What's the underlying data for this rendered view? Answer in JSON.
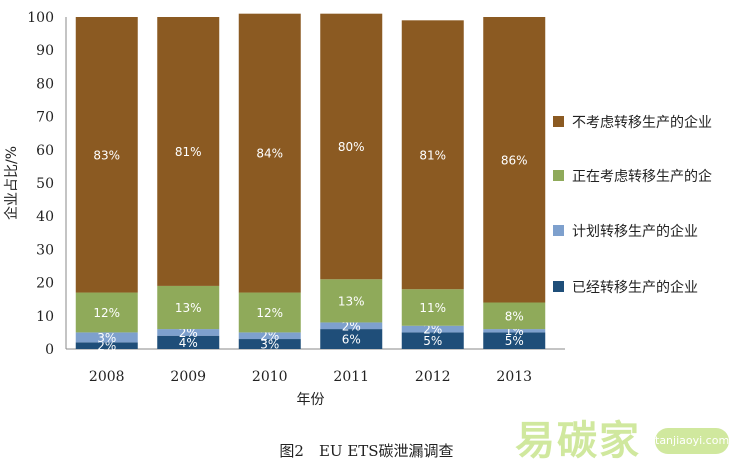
{
  "chart_data": {
    "type": "bar",
    "stacked": true,
    "percent_stacked": true,
    "categories": [
      "2008",
      "2009",
      "2010",
      "2011",
      "2012",
      "2013"
    ],
    "series": [
      {
        "name": "已经转移生产的企业",
        "values": [
          2,
          4,
          3,
          6,
          5,
          5
        ],
        "labels": [
          "2%",
          "4%",
          "3%",
          "6%",
          "5%",
          "5%"
        ],
        "color": "#1f4e79"
      },
      {
        "name": "计划转移生产的企业",
        "values": [
          3,
          2,
          2,
          2,
          2,
          1
        ],
        "labels": [
          "3%",
          "2%",
          "2%",
          "2%",
          "2%",
          "1%"
        ],
        "color": "#7ea0cd"
      },
      {
        "name": "正在考虑转移生产的企",
        "values": [
          12,
          13,
          12,
          13,
          11,
          8
        ],
        "labels": [
          "12%",
          "13%",
          "12%",
          "13%",
          "11%",
          "8%"
        ],
        "color": "#8faa5a"
      },
      {
        "name": "不考虑转移生产的企业",
        "values": [
          83,
          81,
          84,
          80,
          81,
          86
        ],
        "labels": [
          "83%",
          "81%",
          "84%",
          "80%",
          "81%",
          "86%"
        ],
        "color": "#8b5a22"
      }
    ],
    "legend_order": [
      "不考虑转移生产的企业",
      "正在考虑转移生产的企",
      "计划转移生产的企业",
      "已经转移生产的企业"
    ],
    "legend_position": "right",
    "xlabel": "年份",
    "ylabel": "企业占比/%",
    "ylim": [
      0,
      100
    ],
    "yticks": [
      "0",
      "10",
      "20",
      "30",
      "40",
      "50",
      "60",
      "70",
      "80",
      "90",
      "100"
    ],
    "grid": false
  },
  "caption": "图2　EU ETS碳泄漏调查",
  "watermark": {
    "text": "易碳家",
    "url": "tanjiaoyi.com"
  }
}
